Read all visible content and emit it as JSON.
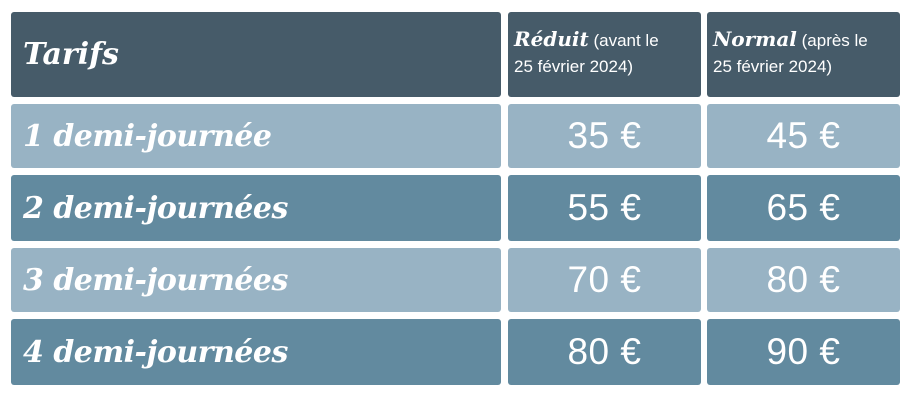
{
  "header": {
    "title": "Tarifs",
    "reduced": {
      "name": "Réduit",
      "note_line1": "(avant le",
      "note_line2": "25 février 2024)"
    },
    "normal": {
      "name": "Normal",
      "note_line1": "(après le",
      "note_line2": "25 février 2024)"
    }
  },
  "rows": [
    {
      "label": "1 demi-journée",
      "reduced": "35 €",
      "normal": "45 €"
    },
    {
      "label": "2 demi-journées",
      "reduced": "55 €",
      "normal": "65 €"
    },
    {
      "label": "3 demi-journées",
      "reduced": "70 €",
      "normal": "80 €"
    },
    {
      "label": "4 demi-journées",
      "reduced": "80 €",
      "normal": "90 €"
    }
  ],
  "colors": {
    "header_bg": "#465b69",
    "row_light_bg": "#98b3c4",
    "row_dark_bg": "#628a9f",
    "text": "#ffffff"
  }
}
